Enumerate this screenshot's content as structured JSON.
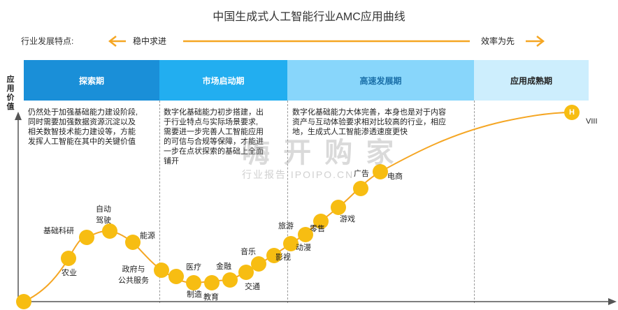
{
  "title": "中国生成式人工智能行业AMC应用曲线",
  "y_axis_label": "应用价值",
  "feature_label": "行业发展特点:",
  "feature_left": "稳中求进",
  "feature_right": "效率为先",
  "stages": [
    {
      "name": "探索期",
      "bg": "#1a8fd8",
      "fg": "#ffffff",
      "desc": [
        "仍然处于加强基础能力建设阶段,",
        "同时需要加强数据资源沉淀以及",
        "相关数智技术能力建设等，方能",
        "发挥人工智能在其中的关键价值"
      ]
    },
    {
      "name": "市场启动期",
      "bg": "#22aef0",
      "fg": "#ffffff",
      "desc": [
        "数字化基础能力初步搭建，出",
        "于行业特点与实际场景要求,",
        "需要进一步完善人工智能应用",
        "的可信与合规等保障，才能进",
        "一步在点状探索的基础上全面",
        "铺开"
      ]
    },
    {
      "name": "高速发展期",
      "bg": "#88d6fb",
      "fg": "#1a6fa8",
      "desc": [
        "数字化基础能力大体完善，本身也是对于内容",
        "资产与互动体验要求相对比较高的行业，相应",
        "地，生成式人工智能渗透速度更快"
      ]
    },
    {
      "name": "应用成熟期",
      "bg": "#cdeefd",
      "fg": "#222222",
      "desc": []
    }
  ],
  "points": [
    {
      "label": ""
    },
    {
      "label": "农业"
    },
    {
      "label": "基础科研"
    },
    {
      "label": "自动\n驾驶"
    },
    {
      "label": "能源"
    },
    {
      "label": "政府与\n公共服务"
    },
    {
      "label": "医疗"
    },
    {
      "label": "制造"
    },
    {
      "label": "教育"
    },
    {
      "label": "金融"
    },
    {
      "label": "交通"
    },
    {
      "label": "音乐"
    },
    {
      "label": "影视"
    },
    {
      "label": "旅游"
    },
    {
      "label": "动漫"
    },
    {
      "label": "零售"
    },
    {
      "label": "游戏"
    },
    {
      "label": "广告"
    },
    {
      "label": "电商"
    }
  ],
  "end_marker": "H",
  "end_label": "VIII",
  "watermark_1": "嗨 开 购 家",
  "watermark_2": "行业报告 IPOIPO.CN",
  "colors": {
    "curve": "#f5a623",
    "dot": "#f7bd12",
    "arrow": "#f5a623",
    "axis": "#555555"
  }
}
